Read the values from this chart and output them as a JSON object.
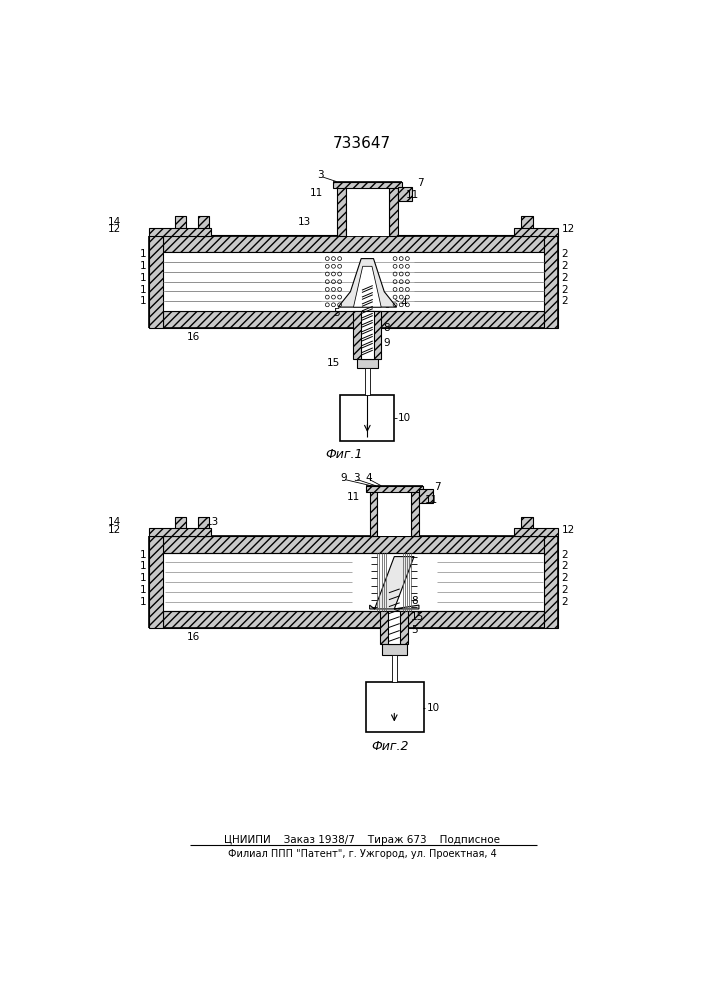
{
  "title": "733647",
  "fig1_label": "Фиг.1",
  "fig2_label": "Фиг.2",
  "footer_line1": "ЦНИИПИ    Заказ 1938/7    Тираж 673    Подписное",
  "footer_line2": "Филиал ППП \"Патент\", г. Ужгород, ул. Проектная, 4",
  "bg_color": "#ffffff"
}
